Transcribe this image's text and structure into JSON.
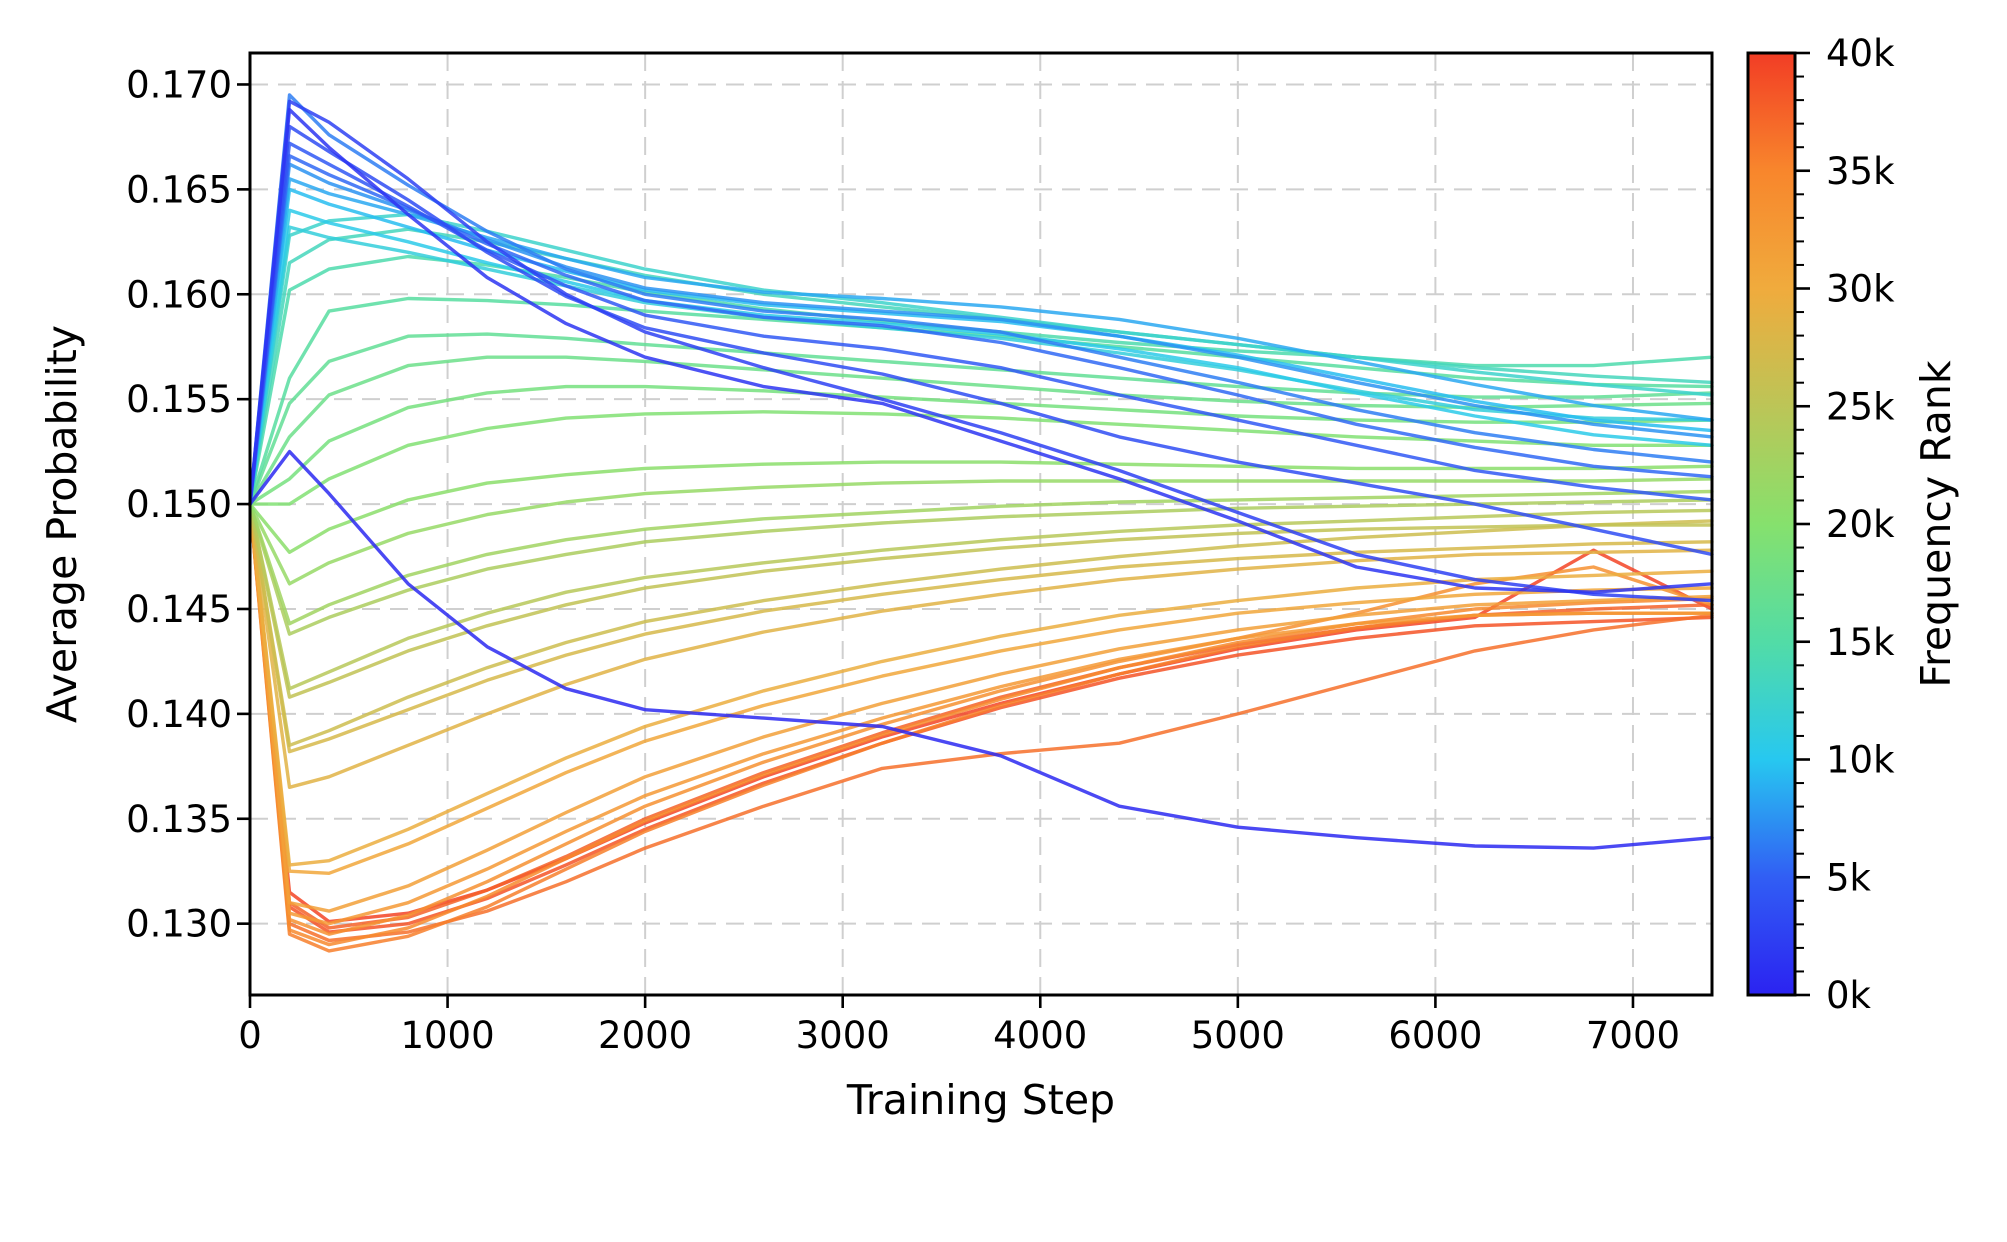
{
  "axes": {
    "xlabel": "Training Step",
    "ylabel": "Average Probability",
    "xlim": [
      0,
      7400
    ],
    "ylim": [
      0.1266,
      0.1715
    ],
    "x_ticks": [
      0,
      1000,
      2000,
      3000,
      4000,
      5000,
      6000,
      7000
    ],
    "x_tick_labels": [
      "0",
      "1000",
      "2000",
      "3000",
      "4000",
      "5000",
      "6000",
      "7000"
    ],
    "y_ticks": [
      0.13,
      0.135,
      0.14,
      0.145,
      0.15,
      0.155,
      0.16,
      0.165,
      0.17
    ],
    "y_tick_labels": [
      "0.130",
      "0.135",
      "0.140",
      "0.145",
      "0.150",
      "0.155",
      "0.160",
      "0.165",
      "0.170"
    ],
    "grid": true,
    "grid_color": "#cfcfcf",
    "spine_color": "#000000"
  },
  "colorbar": {
    "label": "Frequency Rank",
    "min_k": 0,
    "max_k": 40,
    "major_tick_step_k": 5,
    "minor_tick_step_k": 1,
    "tick_labels": [
      "0k",
      "5k",
      "10k",
      "15k",
      "20k",
      "25k",
      "30k",
      "35k",
      "40k"
    ],
    "stops": [
      {
        "at_k": 0,
        "color": "#2b23f1"
      },
      {
        "at_k": 5,
        "color": "#315ef4"
      },
      {
        "at_k": 10,
        "color": "#27c8f0"
      },
      {
        "at_k": 15,
        "color": "#52dca6"
      },
      {
        "at_k": 20,
        "color": "#86e16d"
      },
      {
        "at_k": 25,
        "color": "#bcc557"
      },
      {
        "at_k": 30,
        "color": "#f0ab3d"
      },
      {
        "at_k": 35,
        "color": "#f8862c"
      },
      {
        "at_k": 40,
        "color": "#f23d25"
      }
    ]
  },
  "chart_data": {
    "type": "line",
    "title": "",
    "xlabel": "Training Step",
    "ylabel": "Average Probability",
    "xlim": [
      0,
      7400
    ],
    "ylim": [
      0.1266,
      0.1715
    ],
    "legend": "colorbar: Frequency Rank 0k-40k",
    "x": [
      0,
      200,
      400,
      800,
      1200,
      1600,
      2000,
      2600,
      3200,
      3800,
      4400,
      5000,
      5600,
      6200,
      6800,
      7400
    ],
    "series": [
      {
        "rank_k": 0.5,
        "values": [
          0.15,
          0.1525,
          0.1505,
          0.1462,
          0.1432,
          0.1412,
          0.1402,
          0.1398,
          0.1394,
          0.138,
          0.1356,
          0.1346,
          0.1341,
          0.1337,
          0.1336,
          0.1341
        ]
      },
      {
        "rank_k": 1.5,
        "values": [
          0.15,
          0.1688,
          0.167,
          0.1638,
          0.1608,
          0.1586,
          0.157,
          0.1556,
          0.1548,
          0.153,
          0.1512,
          0.1492,
          0.147,
          0.146,
          0.1458,
          0.1462
        ]
      },
      {
        "rank_k": 2.5,
        "values": [
          0.15,
          0.1692,
          0.1682,
          0.1655,
          0.1625,
          0.16,
          0.1582,
          0.1565,
          0.155,
          0.1534,
          0.1516,
          0.1496,
          0.1476,
          0.1464,
          0.1457,
          0.1454
        ]
      },
      {
        "rank_k": 3.5,
        "values": [
          0.15,
          0.168,
          0.1668,
          0.1645,
          0.162,
          0.1599,
          0.1584,
          0.1572,
          0.1562,
          0.1548,
          0.1532,
          0.152,
          0.151,
          0.15,
          0.1488,
          0.1476
        ]
      },
      {
        "rank_k": 4.5,
        "values": [
          0.15,
          0.1672,
          0.1662,
          0.1642,
          0.1621,
          0.1604,
          0.159,
          0.158,
          0.1574,
          0.1565,
          0.1552,
          0.154,
          0.1528,
          0.1516,
          0.1508,
          0.1502
        ]
      },
      {
        "rank_k": 5.5,
        "values": [
          0.15,
          0.1666,
          0.1657,
          0.1641,
          0.1624,
          0.1609,
          0.1597,
          0.1589,
          0.1585,
          0.1577,
          0.1565,
          0.1552,
          0.1538,
          0.1527,
          0.1518,
          0.1513
        ]
      },
      {
        "rank_k": 6.5,
        "values": [
          0.15,
          0.1695,
          0.1676,
          0.1652,
          0.163,
          0.1612,
          0.16,
          0.1592,
          0.1588,
          0.1582,
          0.157,
          0.1558,
          0.1545,
          0.1534,
          0.1526,
          0.152
        ]
      },
      {
        "rank_k": 7.5,
        "values": [
          0.15,
          0.1662,
          0.1653,
          0.164,
          0.1626,
          0.1613,
          0.1603,
          0.1596,
          0.1592,
          0.1588,
          0.158,
          0.157,
          0.1558,
          0.1547,
          0.1538,
          0.1532
        ]
      },
      {
        "rank_k": 8.5,
        "values": [
          0.15,
          0.1655,
          0.1648,
          0.1638,
          0.1627,
          0.1617,
          0.1608,
          0.1601,
          0.1598,
          0.1594,
          0.1588,
          0.1579,
          0.1568,
          0.1557,
          0.1547,
          0.154
        ]
      },
      {
        "rank_k": 9.5,
        "values": [
          0.15,
          0.165,
          0.1643,
          0.1632,
          0.1621,
          0.1611,
          0.1602,
          0.1595,
          0.1591,
          0.1587,
          0.158,
          0.1571,
          0.156,
          0.1549,
          0.154,
          0.1535
        ]
      },
      {
        "rank_k": 10.5,
        "values": [
          0.15,
          0.164,
          0.1634,
          0.1625,
          0.1615,
          0.1606,
          0.1597,
          0.159,
          0.1586,
          0.1581,
          0.1574,
          0.1565,
          0.1553,
          0.1542,
          0.1533,
          0.1528
        ]
      },
      {
        "rank_k": 11.5,
        "values": [
          0.15,
          0.1632,
          0.1627,
          0.162,
          0.1612,
          0.1604,
          0.1596,
          0.1589,
          0.1584,
          0.1579,
          0.1572,
          0.1564,
          0.1554,
          0.1545,
          0.1541,
          0.154
        ]
      },
      {
        "rank_k": 12.5,
        "values": [
          0.15,
          0.1628,
          0.1635,
          0.1638,
          0.163,
          0.1621,
          0.1612,
          0.1602,
          0.1596,
          0.1589,
          0.1582,
          0.1576,
          0.157,
          0.1563,
          0.1557,
          0.1552
        ]
      },
      {
        "rank_k": 13.5,
        "values": [
          0.15,
          0.1615,
          0.1626,
          0.1631,
          0.1625,
          0.1617,
          0.1609,
          0.16,
          0.1594,
          0.1588,
          0.1582,
          0.1576,
          0.157,
          0.1565,
          0.1561,
          0.1558
        ]
      },
      {
        "rank_k": 14.5,
        "values": [
          0.15,
          0.1602,
          0.1612,
          0.1618,
          0.1614,
          0.1608,
          0.1601,
          0.1593,
          0.1587,
          0.1582,
          0.1577,
          0.1573,
          0.157,
          0.1566,
          0.1566,
          0.157
        ]
      },
      {
        "rank_k": 15.5,
        "values": [
          0.15,
          0.156,
          0.1592,
          0.1598,
          0.1597,
          0.1595,
          0.1592,
          0.1588,
          0.1584,
          0.158,
          0.1575,
          0.157,
          0.1565,
          0.156,
          0.1557,
          0.1556
        ]
      },
      {
        "rank_k": 16.5,
        "values": [
          0.15,
          0.1548,
          0.1568,
          0.158,
          0.1581,
          0.1579,
          0.1576,
          0.1572,
          0.1568,
          0.1564,
          0.156,
          0.1556,
          0.1553,
          0.1551,
          0.1551,
          0.1553
        ]
      },
      {
        "rank_k": 17.5,
        "values": [
          0.15,
          0.1532,
          0.1552,
          0.1566,
          0.157,
          0.157,
          0.1568,
          0.1564,
          0.156,
          0.1556,
          0.1552,
          0.1549,
          0.1547,
          0.1546,
          0.1547,
          0.1548
        ]
      },
      {
        "rank_k": 18.5,
        "values": [
          0.15,
          0.1512,
          0.153,
          0.1546,
          0.1553,
          0.1556,
          0.1556,
          0.1554,
          0.1551,
          0.1548,
          0.1545,
          0.1542,
          0.154,
          0.1539,
          0.1539,
          0.154
        ]
      },
      {
        "rank_k": 19.5,
        "values": [
          0.15,
          0.15,
          0.1512,
          0.1528,
          0.1536,
          0.1541,
          0.1543,
          0.1544,
          0.1543,
          0.1541,
          0.1538,
          0.1535,
          0.1532,
          0.153,
          0.1528,
          0.1528
        ]
      },
      {
        "rank_k": 20.5,
        "values": [
          0.15,
          0.1477,
          0.1488,
          0.1502,
          0.151,
          0.1514,
          0.1517,
          0.1519,
          0.152,
          0.152,
          0.1519,
          0.1518,
          0.1517,
          0.1517,
          0.1517,
          0.1518
        ]
      },
      {
        "rank_k": 21.5,
        "values": [
          0.15,
          0.1462,
          0.1472,
          0.1486,
          0.1495,
          0.1501,
          0.1505,
          0.1508,
          0.151,
          0.1511,
          0.1511,
          0.1511,
          0.1511,
          0.1511,
          0.1511,
          0.1512
        ]
      },
      {
        "rank_k": 22.5,
        "values": [
          0.15,
          0.1443,
          0.1452,
          0.1466,
          0.1476,
          0.1483,
          0.1488,
          0.1493,
          0.1496,
          0.1499,
          0.1501,
          0.1502,
          0.1503,
          0.1504,
          0.1505,
          0.1506
        ]
      },
      {
        "rank_k": 23.5,
        "values": [
          0.15,
          0.1438,
          0.1446,
          0.1459,
          0.1469,
          0.1476,
          0.1482,
          0.1487,
          0.1491,
          0.1494,
          0.1496,
          0.1498,
          0.1499,
          0.15,
          0.1501,
          0.1502
        ]
      },
      {
        "rank_k": 24.5,
        "values": [
          0.15,
          0.1412,
          0.142,
          0.1436,
          0.1448,
          0.1458,
          0.1465,
          0.1472,
          0.1478,
          0.1483,
          0.1487,
          0.149,
          0.1492,
          0.1494,
          0.1496,
          0.1497
        ]
      },
      {
        "rank_k": 25.5,
        "values": [
          0.15,
          0.1408,
          0.1415,
          0.143,
          0.1442,
          0.1452,
          0.146,
          0.1468,
          0.1474,
          0.1479,
          0.1483,
          0.1486,
          0.1488,
          0.1489,
          0.149,
          0.149
        ]
      },
      {
        "rank_k": 26.5,
        "values": [
          0.15,
          0.1385,
          0.1392,
          0.1408,
          0.1422,
          0.1434,
          0.1444,
          0.1454,
          0.1462,
          0.1469,
          0.1475,
          0.148,
          0.1484,
          0.1487,
          0.149,
          0.1492
        ]
      },
      {
        "rank_k": 27.5,
        "values": [
          0.15,
          0.1382,
          0.1388,
          0.1402,
          0.1416,
          0.1428,
          0.1438,
          0.1449,
          0.1457,
          0.1464,
          0.147,
          0.1474,
          0.1477,
          0.1479,
          0.1481,
          0.1482
        ]
      },
      {
        "rank_k": 28.5,
        "values": [
          0.15,
          0.1365,
          0.137,
          0.1385,
          0.14,
          0.1414,
          0.1426,
          0.1439,
          0.1449,
          0.1457,
          0.1464,
          0.1469,
          0.1473,
          0.1476,
          0.1477,
          0.1478
        ]
      },
      {
        "rank_k": 29.5,
        "values": [
          0.15,
          0.1328,
          0.133,
          0.1345,
          0.1362,
          0.1379,
          0.1394,
          0.1411,
          0.1425,
          0.1437,
          0.1447,
          0.1454,
          0.146,
          0.1464,
          0.1466,
          0.1468
        ]
      },
      {
        "rank_k": 30.5,
        "values": [
          0.15,
          0.1325,
          0.1324,
          0.1338,
          0.1355,
          0.1372,
          0.1387,
          0.1404,
          0.1418,
          0.143,
          0.144,
          0.1448,
          0.1453,
          0.1457,
          0.1459,
          0.146
        ]
      },
      {
        "rank_k": 31.5,
        "values": [
          0.15,
          0.131,
          0.1306,
          0.1318,
          0.1335,
          0.1353,
          0.137,
          0.1389,
          0.1405,
          0.1419,
          0.1431,
          0.144,
          0.1447,
          0.1452,
          0.1454,
          0.1456
        ]
      },
      {
        "rank_k": 32.5,
        "values": [
          0.15,
          0.1305,
          0.13,
          0.131,
          0.1326,
          0.1344,
          0.1361,
          0.1381,
          0.1398,
          0.1413,
          0.1426,
          0.1436,
          0.1443,
          0.1447,
          0.1448,
          0.1448
        ]
      },
      {
        "rank_k": 33.5,
        "values": [
          0.15,
          0.1302,
          0.1295,
          0.1304,
          0.132,
          0.1338,
          0.1356,
          0.1377,
          0.1395,
          0.1411,
          0.1425,
          0.1436,
          0.1448,
          0.1462,
          0.147,
          0.1452
        ]
      },
      {
        "rank_k": 34.5,
        "values": [
          0.15,
          0.1297,
          0.129,
          0.1298,
          0.1313,
          0.1331,
          0.1349,
          0.1371,
          0.139,
          0.1407,
          0.1422,
          0.1434,
          0.1443,
          0.145,
          0.1453,
          0.1455
        ]
      },
      {
        "rank_k": 35.5,
        "values": [
          0.15,
          0.1295,
          0.1287,
          0.1294,
          0.1308,
          0.1326,
          0.1344,
          0.1366,
          0.1386,
          0.1404,
          0.1419,
          0.1432,
          0.1441,
          0.1447,
          0.1448,
          0.1448
        ]
      },
      {
        "rank_k": 36.5,
        "values": [
          0.15,
          0.13,
          0.1292,
          0.1296,
          0.1306,
          0.132,
          0.1336,
          0.1356,
          0.1374,
          0.1381,
          0.1386,
          0.14,
          0.1415,
          0.143,
          0.144,
          0.1447
        ]
      },
      {
        "rank_k": 37.5,
        "values": [
          0.15,
          0.131,
          0.1298,
          0.1303,
          0.1316,
          0.1332,
          0.135,
          0.1372,
          0.1391,
          0.1408,
          0.1422,
          0.1433,
          0.1441,
          0.1447,
          0.145,
          0.1452
        ]
      },
      {
        "rank_k": 38.5,
        "values": [
          0.15,
          0.1308,
          0.1296,
          0.13,
          0.1312,
          0.1328,
          0.1345,
          0.1367,
          0.1386,
          0.1403,
          0.1417,
          0.1428,
          0.1436,
          0.1442,
          0.1444,
          0.1446
        ]
      },
      {
        "rank_k": 39.5,
        "values": [
          0.15,
          0.1315,
          0.1301,
          0.1305,
          0.1316,
          0.1331,
          0.1348,
          0.137,
          0.1389,
          0.1405,
          0.1419,
          0.1431,
          0.144,
          0.1446,
          0.1478,
          0.145
        ]
      }
    ]
  }
}
